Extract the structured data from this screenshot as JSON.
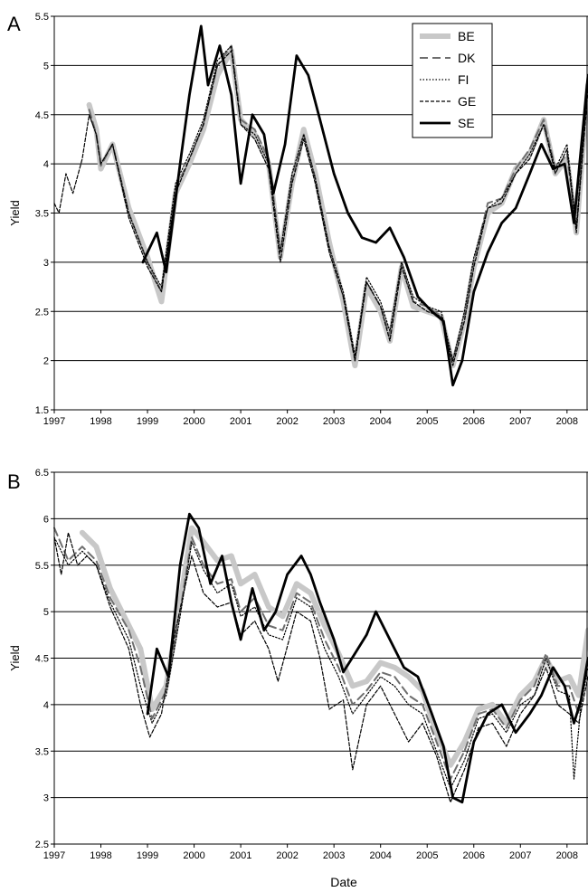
{
  "figure": {
    "xlabel": "Date"
  },
  "chart_data": [
    {
      "type": "line",
      "panel_label": "A",
      "ylabel": "Yield",
      "xlabel": "",
      "xlim": [
        1997,
        2008.45
      ],
      "ylim": [
        1.5,
        5.5
      ],
      "yticks": [
        "1.5",
        "2",
        "2.5",
        "3",
        "3.5",
        "4",
        "4.5",
        "5",
        "5.5"
      ],
      "xticks": [
        "1997",
        "1998",
        "1999",
        "2000",
        "2001",
        "2002",
        "2003",
        "2004",
        "2005",
        "2006",
        "2007",
        "2008"
      ],
      "grid": "horizontal",
      "legend": "top-right",
      "series": [
        {
          "name": "BE",
          "style": "thick-gray",
          "color": "#c8c8c8",
          "x": [
            1997.75,
            1997.9,
            1998.0,
            1998.25,
            1998.6,
            1999.0,
            1999.3,
            1999.6,
            1999.9,
            2000.2,
            2000.5,
            2000.8,
            2001.0,
            2001.3,
            2001.6,
            2001.85,
            2002.1,
            2002.35,
            2002.6,
            2002.9,
            2003.2,
            2003.45,
            2003.7,
            2004.0,
            2004.2,
            2004.45,
            2004.7,
            2005.0,
            2005.3,
            2005.55,
            2005.8,
            2006.0,
            2006.3,
            2006.6,
            2006.9,
            2007.2,
            2007.5,
            2007.75,
            2008.0,
            2008.2,
            2008.45
          ],
          "y": [
            4.6,
            4.35,
            3.95,
            4.2,
            3.55,
            3.05,
            2.6,
            3.7,
            4.0,
            4.35,
            4.9,
            5.15,
            4.45,
            4.3,
            4.0,
            3.05,
            3.8,
            4.35,
            3.9,
            3.2,
            2.6,
            1.95,
            2.75,
            2.5,
            2.2,
            2.95,
            2.55,
            2.5,
            2.45,
            1.95,
            2.4,
            2.95,
            3.5,
            3.6,
            3.95,
            4.1,
            4.45,
            3.9,
            4.05,
            3.3,
            4.8
          ]
        },
        {
          "name": "DK",
          "style": "long-dash-gray",
          "color": "#6e6e6e",
          "x": [
            1997.75,
            1997.9,
            1998.0,
            1998.25,
            1998.6,
            1999.0,
            1999.3,
            1999.6,
            1999.9,
            2000.2,
            2000.5,
            2000.8,
            2001.0,
            2001.3,
            2001.6,
            2001.85,
            2002.1,
            2002.35,
            2002.6,
            2002.9,
            2003.2,
            2003.45,
            2003.7,
            2004.0,
            2004.2,
            2004.45,
            2004.7,
            2005.0,
            2005.3,
            2005.55,
            2005.8,
            2006.0,
            2006.3,
            2006.6,
            2006.9,
            2007.2,
            2007.5,
            2007.75,
            2008.0,
            2008.2,
            2008.45
          ],
          "y": [
            4.55,
            4.3,
            3.98,
            4.2,
            3.5,
            3.0,
            2.7,
            3.75,
            4.05,
            4.4,
            5.0,
            5.2,
            4.45,
            4.35,
            4.05,
            3.1,
            3.85,
            4.3,
            3.85,
            3.15,
            2.65,
            2.0,
            2.8,
            2.55,
            2.25,
            3.0,
            2.6,
            2.55,
            2.45,
            2.0,
            2.45,
            3.0,
            3.6,
            3.65,
            3.95,
            4.15,
            4.45,
            3.95,
            4.1,
            3.35,
            4.85
          ]
        },
        {
          "name": "FI",
          "style": "dotted",
          "color": "#000000",
          "x": [
            1997.75,
            1997.9,
            1998.0,
            1998.25,
            1998.6,
            1999.0,
            1999.3,
            1999.6,
            1999.9,
            2000.2,
            2000.5,
            2000.8,
            2001.0,
            2001.3,
            2001.6,
            2001.85,
            2002.1,
            2002.35,
            2002.6,
            2002.9,
            2003.2,
            2003.45,
            2003.7,
            2004.0,
            2004.2,
            2004.45,
            2004.7,
            2005.0,
            2005.3,
            2005.55,
            2005.8,
            2006.0,
            2006.3,
            2006.6,
            2006.9,
            2007.2,
            2007.5,
            2007.75,
            2008.0,
            2008.2,
            2008.45
          ],
          "y": [
            4.5,
            4.3,
            4.0,
            4.2,
            3.5,
            3.0,
            2.75,
            3.8,
            4.1,
            4.45,
            5.05,
            5.2,
            4.4,
            4.3,
            4.0,
            3.1,
            3.9,
            4.3,
            3.85,
            3.15,
            2.7,
            2.05,
            2.85,
            2.6,
            2.3,
            3.0,
            2.65,
            2.55,
            2.5,
            2.0,
            2.5,
            3.05,
            3.55,
            3.65,
            3.9,
            4.1,
            4.4,
            3.95,
            4.2,
            3.35,
            4.8
          ]
        },
        {
          "name": "GE",
          "style": "short-dash",
          "color": "#000000",
          "x": [
            1997.0,
            1997.1,
            1997.25,
            1997.4,
            1997.6,
            1997.75,
            1997.9,
            1998.0,
            1998.25,
            1998.6,
            1999.0,
            1999.3,
            1999.6,
            1999.9,
            2000.2,
            2000.5,
            2000.8,
            2001.0,
            2001.3,
            2001.6,
            2001.85,
            2002.1,
            2002.35,
            2002.6,
            2002.9,
            2003.2,
            2003.45,
            2003.7,
            2004.0,
            2004.2,
            2004.45,
            2004.7,
            2005.0,
            2005.3,
            2005.55,
            2005.8,
            2006.0,
            2006.3,
            2006.6,
            2006.9,
            2007.2,
            2007.5,
            2007.75,
            2008.0,
            2008.2,
            2008.45
          ],
          "y": [
            3.6,
            3.5,
            3.9,
            3.7,
            4.05,
            4.5,
            4.3,
            4.0,
            4.2,
            3.45,
            2.95,
            2.7,
            3.7,
            4.05,
            4.4,
            5.0,
            5.15,
            4.4,
            4.25,
            3.95,
            3.0,
            3.8,
            4.25,
            3.8,
            3.1,
            2.65,
            2.0,
            2.8,
            2.55,
            2.2,
            2.95,
            2.6,
            2.5,
            2.45,
            1.95,
            2.4,
            2.95,
            3.55,
            3.6,
            3.9,
            4.05,
            4.4,
            3.9,
            4.15,
            3.3,
            4.75
          ]
        },
        {
          "name": "SE",
          "style": "thick-black",
          "color": "#000000",
          "x": [
            1998.9,
            1999.2,
            1999.4,
            1999.7,
            1999.9,
            2000.15,
            2000.3,
            2000.55,
            2000.8,
            2001.0,
            2001.25,
            2001.5,
            2001.7,
            2001.95,
            2002.2,
            2002.45,
            2002.7,
            2003.0,
            2003.3,
            2003.6,
            2003.9,
            2004.2,
            2004.5,
            2004.8,
            2005.1,
            2005.35,
            2005.55,
            2005.75,
            2006.0,
            2006.3,
            2006.6,
            2006.9,
            2007.2,
            2007.45,
            2007.7,
            2007.95,
            2008.15,
            2008.45
          ],
          "y": [
            3.0,
            3.3,
            2.9,
            4.0,
            4.7,
            5.4,
            4.8,
            5.2,
            4.7,
            3.8,
            4.5,
            4.3,
            3.7,
            4.2,
            5.1,
            4.9,
            4.45,
            3.9,
            3.5,
            3.25,
            3.2,
            3.35,
            3.05,
            2.65,
            2.5,
            2.4,
            1.75,
            2.0,
            2.7,
            3.1,
            3.4,
            3.55,
            3.9,
            4.2,
            3.95,
            4.0,
            3.4,
            4.9
          ]
        }
      ]
    },
    {
      "type": "line",
      "panel_label": "B",
      "ylabel": "Yield",
      "xlabel": "Date",
      "xlim": [
        1997,
        2008.45
      ],
      "ylim": [
        2.5,
        6.5
      ],
      "yticks": [
        "2.5",
        "3",
        "3.5",
        "4",
        "4.5",
        "5",
        "5.5",
        "6",
        "6.5"
      ],
      "xticks": [
        "1997",
        "1998",
        "1999",
        "2000",
        "2001",
        "2002",
        "2003",
        "2004",
        "2005",
        "2006",
        "2007",
        "2008"
      ],
      "grid": "horizontal",
      "legend": "none",
      "series": [
        {
          "name": "BE",
          "style": "thick-gray",
          "color": "#c8c8c8",
          "x": [
            1997.6,
            1997.9,
            1998.2,
            1998.6,
            1998.85,
            1999.1,
            1999.4,
            1999.7,
            1999.95,
            2000.2,
            2000.5,
            2000.8,
            2001.0,
            2001.3,
            2001.6,
            2001.9,
            2002.2,
            2002.5,
            2002.8,
            2003.1,
            2003.4,
            2003.7,
            2004.0,
            2004.3,
            2004.6,
            2004.9,
            2005.2,
            2005.5,
            2005.8,
            2006.1,
            2006.4,
            2006.7,
            2007.0,
            2007.3,
            2007.55,
            2007.8,
            2008.05,
            2008.25,
            2008.45
          ],
          "y": [
            5.85,
            5.7,
            5.25,
            4.85,
            4.6,
            3.95,
            4.2,
            5.1,
            5.9,
            5.75,
            5.55,
            5.6,
            5.3,
            5.4,
            5.05,
            4.95,
            5.3,
            5.2,
            4.85,
            4.55,
            4.2,
            4.25,
            4.45,
            4.4,
            4.3,
            4.15,
            3.7,
            3.35,
            3.6,
            3.95,
            4.0,
            3.8,
            4.1,
            4.25,
            4.5,
            4.25,
            4.3,
            4.1,
            4.8
          ]
        },
        {
          "name": "DK",
          "style": "long-dash-gray",
          "color": "#6e6e6e",
          "x": [
            1997.0,
            1997.3,
            1997.6,
            1997.9,
            1998.2,
            1998.6,
            1998.85,
            1999.1,
            1999.4,
            1999.7,
            1999.95,
            2000.2,
            2000.5,
            2000.8,
            2001.0,
            2001.3,
            2001.6,
            2001.9,
            2002.2,
            2002.5,
            2002.8,
            2003.1,
            2003.4,
            2003.7,
            2004.0,
            2004.3,
            2004.6,
            2004.9,
            2005.2,
            2005.5,
            2005.8,
            2006.1,
            2006.4,
            2006.7,
            2007.0,
            2007.3,
            2007.55,
            2007.8,
            2008.05,
            2008.25,
            2008.45
          ],
          "y": [
            5.9,
            5.55,
            5.7,
            5.55,
            5.15,
            4.8,
            4.4,
            3.85,
            4.15,
            5.0,
            5.8,
            5.5,
            5.3,
            5.35,
            5.0,
            5.15,
            4.85,
            4.8,
            5.2,
            5.1,
            4.7,
            4.4,
            4.0,
            4.15,
            4.35,
            4.3,
            4.1,
            4.0,
            3.6,
            3.2,
            3.5,
            3.9,
            3.95,
            3.75,
            4.05,
            4.2,
            4.55,
            4.2,
            4.2,
            3.9,
            4.5
          ]
        },
        {
          "name": "FI",
          "style": "dotted",
          "color": "#000000",
          "x": [
            1997.0,
            1997.3,
            1997.6,
            1997.9,
            1998.2,
            1998.6,
            1998.85,
            1999.1,
            1999.4,
            1999.7,
            1999.95,
            2000.2,
            2000.5,
            2000.8,
            2001.0,
            2001.3,
            2001.6,
            2001.9,
            2002.2,
            2002.5,
            2002.8,
            2003.1,
            2003.4,
            2003.7,
            2004.0,
            2004.3,
            2004.6,
            2004.9,
            2005.2,
            2005.5,
            2005.8,
            2006.1,
            2006.4,
            2006.7,
            2007.0,
            2007.3,
            2007.55,
            2007.8,
            2008.05,
            2008.15,
            2008.3,
            2008.45
          ],
          "y": [
            5.8,
            5.5,
            5.65,
            5.5,
            5.1,
            4.7,
            4.2,
            3.8,
            4.1,
            4.95,
            5.75,
            5.45,
            5.2,
            5.3,
            4.95,
            5.05,
            4.75,
            4.7,
            5.15,
            5.05,
            4.6,
            4.3,
            3.9,
            4.1,
            4.3,
            4.2,
            4.0,
            3.9,
            3.5,
            3.1,
            3.4,
            3.85,
            3.9,
            3.7,
            4.0,
            4.1,
            4.5,
            4.15,
            4.1,
            3.2,
            4.0,
            4.4
          ]
        },
        {
          "name": "GE",
          "style": "short-dash",
          "color": "#000000",
          "x": [
            1997.0,
            1997.15,
            1997.3,
            1997.5,
            1997.7,
            1997.9,
            1998.2,
            1998.6,
            1998.85,
            1999.05,
            1999.3,
            1999.6,
            1999.95,
            2000.2,
            2000.5,
            2000.8,
            2001.0,
            2001.3,
            2001.6,
            2001.8,
            2002.2,
            2002.5,
            2002.7,
            2002.9,
            2003.2,
            2003.4,
            2003.7,
            2004.0,
            2004.3,
            2004.6,
            2004.9,
            2005.2,
            2005.5,
            2005.8,
            2006.1,
            2006.4,
            2006.7,
            2007.0,
            2007.3,
            2007.55,
            2007.8,
            2008.05,
            2008.25,
            2008.45
          ],
          "y": [
            5.8,
            5.4,
            5.85,
            5.5,
            5.6,
            5.5,
            5.05,
            4.6,
            4.0,
            3.65,
            3.9,
            4.8,
            5.6,
            5.2,
            5.05,
            5.1,
            4.75,
            4.9,
            4.6,
            4.25,
            5.0,
            4.9,
            4.5,
            3.95,
            4.05,
            3.3,
            4.0,
            4.2,
            3.9,
            3.6,
            3.8,
            3.45,
            2.95,
            3.3,
            3.75,
            3.8,
            3.55,
            3.9,
            4.1,
            4.4,
            4.0,
            3.9,
            3.8,
            4.3
          ]
        },
        {
          "name": "SE",
          "style": "thick-black",
          "color": "#000000",
          "x": [
            1999.0,
            1999.2,
            1999.45,
            1999.7,
            1999.9,
            2000.1,
            2000.35,
            2000.6,
            2000.8,
            2001.0,
            2001.25,
            2001.5,
            2001.75,
            2002.0,
            2002.3,
            2002.5,
            2002.7,
            2003.0,
            2003.2,
            2003.45,
            2003.7,
            2003.9,
            2004.2,
            2004.5,
            2004.8,
            2005.1,
            2005.35,
            2005.55,
            2005.75,
            2006.0,
            2006.3,
            2006.6,
            2006.9,
            2007.2,
            2007.45,
            2007.7,
            2007.95,
            2008.15,
            2008.3,
            2008.45
          ],
          "y": [
            3.9,
            4.6,
            4.3,
            5.5,
            6.05,
            5.9,
            5.3,
            5.6,
            5.1,
            4.7,
            5.25,
            4.8,
            5.0,
            5.4,
            5.6,
            5.4,
            5.1,
            4.7,
            4.35,
            4.55,
            4.75,
            5.0,
            4.7,
            4.4,
            4.3,
            3.9,
            3.55,
            3.0,
            2.95,
            3.6,
            3.9,
            4.0,
            3.7,
            3.9,
            4.1,
            4.4,
            4.2,
            3.8,
            4.05,
            4.5
          ]
        }
      ]
    }
  ]
}
